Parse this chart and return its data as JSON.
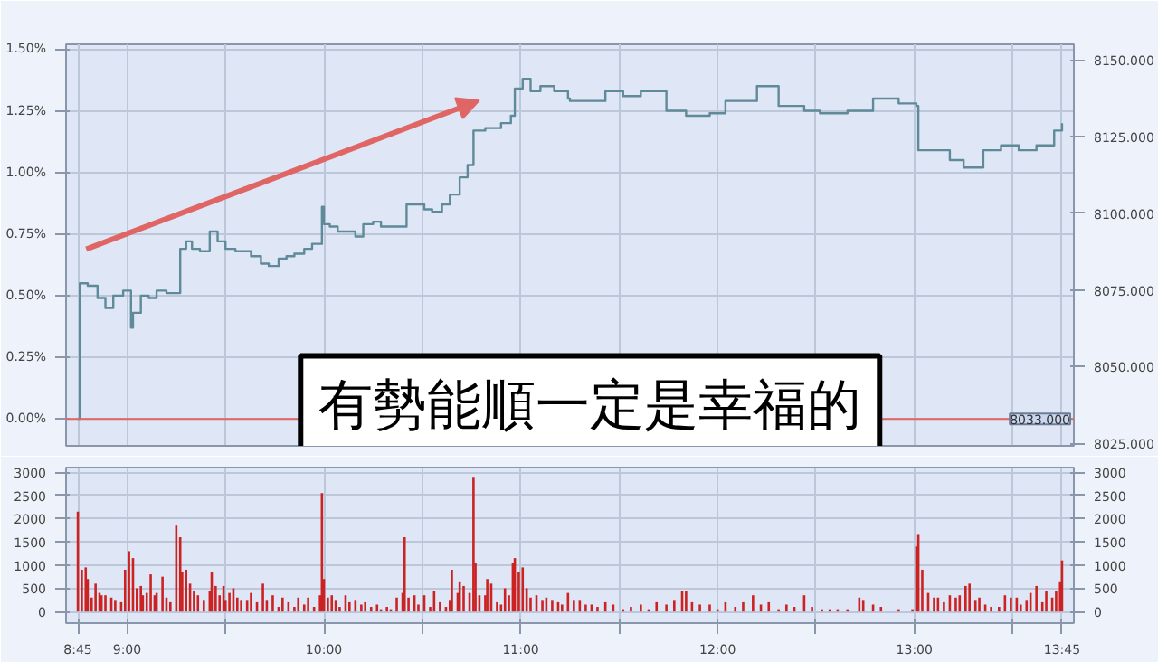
{
  "chart_data": [
    {
      "type": "step",
      "annotations": [
        "有勢能順一定是幸福的"
      ],
      "grid": true,
      "tick_labels": "y",
      "xlim": [
        8.69,
        13.81
      ],
      "xticks": [
        {
          "value": 8.75,
          "label": null
        },
        {
          "value": 9,
          "label": null
        },
        {
          "value": 9.5,
          "label": null
        },
        {
          "value": 10,
          "label": null
        },
        {
          "value": 10.5,
          "label": null
        },
        {
          "value": 11,
          "label": null
        },
        {
          "value": 11.5,
          "label": null
        },
        {
          "value": 12,
          "label": null
        },
        {
          "value": 12.5,
          "label": null
        },
        {
          "value": 13,
          "label": null
        },
        {
          "value": 13.5,
          "label": null
        },
        {
          "value": 13.75,
          "label": null
        }
      ],
      "ylim": [
        -0.11,
        1.52
      ],
      "yticks": [
        {
          "value": 0,
          "label": "0.00%"
        },
        {
          "value": 0.25,
          "label": "0.25%"
        },
        {
          "value": 0.5,
          "label": "0.50%"
        },
        {
          "value": 0.75,
          "label": "0.75%"
        },
        {
          "value": 1.0,
          "label": "1.00%"
        },
        {
          "value": 1.25,
          "label": "1.25%"
        },
        {
          "value": 1.5,
          "label": "1.50%"
        }
      ],
      "y2lim": [
        8024.2,
        8155.1
      ],
      "y2ticks": [
        {
          "value": 8025,
          "label": "8025.000"
        },
        {
          "value": 8050,
          "label": "8050.000"
        },
        {
          "value": 8075,
          "label": "8075.000"
        },
        {
          "value": 8100,
          "label": "8100.000"
        },
        {
          "value": 8125,
          "label": "8125.000"
        },
        {
          "value": 8150,
          "label": "8150.000"
        }
      ],
      "ref_lines": [
        {
          "axis": "y2",
          "value": 8033,
          "label": "8033.000",
          "color": "#e06666"
        }
      ],
      "series": [
        {
          "color": "#5f8a99",
          "x": [
            8.75,
            8.76,
            8.8,
            8.85,
            8.89,
            8.93,
            8.98,
            9.02,
            9.03,
            9.07,
            9.11,
            9.15,
            9.2,
            9.24,
            9.27,
            9.3,
            9.33,
            9.37,
            9.42,
            9.46,
            9.5,
            9.55,
            9.59,
            9.63,
            9.68,
            9.72,
            9.77,
            9.81,
            9.85,
            9.9,
            9.94,
            9.99,
            10.0,
            10.03,
            10.07,
            10.12,
            10.16,
            10.2,
            10.25,
            10.29,
            10.34,
            10.38,
            10.42,
            10.47,
            10.51,
            10.55,
            10.6,
            10.64,
            10.69,
            10.73,
            10.76,
            10.82,
            10.86,
            10.9,
            10.95,
            10.97,
            11.01,
            11.05,
            11.1,
            11.17,
            11.24,
            11.25,
            11.34,
            11.43,
            11.52,
            11.61,
            11.74,
            11.84,
            11.96,
            12.04,
            12.2,
            12.31,
            12.44,
            12.52,
            12.66,
            12.79,
            12.92,
            13.01,
            13.02,
            13.09,
            13.18,
            13.25,
            13.35,
            13.44,
            13.53,
            13.62,
            13.71,
            13.75
          ],
          "values": [
            0.0,
            0.55,
            0.54,
            0.49,
            0.45,
            0.5,
            0.52,
            0.37,
            0.43,
            0.5,
            0.49,
            0.52,
            0.51,
            0.51,
            0.69,
            0.72,
            0.69,
            0.68,
            0.76,
            0.72,
            0.69,
            0.68,
            0.68,
            0.66,
            0.63,
            0.62,
            0.65,
            0.66,
            0.67,
            0.69,
            0.71,
            0.86,
            0.79,
            0.78,
            0.76,
            0.76,
            0.74,
            0.79,
            0.8,
            0.78,
            0.78,
            0.78,
            0.87,
            0.87,
            0.85,
            0.84,
            0.87,
            0.91,
            0.98,
            1.03,
            1.17,
            1.18,
            1.18,
            1.2,
            1.23,
            1.34,
            1.38,
            1.33,
            1.35,
            1.33,
            1.3,
            1.29,
            1.29,
            1.33,
            1.31,
            1.33,
            1.25,
            1.23,
            1.24,
            1.29,
            1.35,
            1.27,
            1.25,
            1.24,
            1.25,
            1.3,
            1.28,
            1.27,
            1.09,
            1.09,
            1.05,
            1.02,
            1.09,
            1.11,
            1.09,
            1.11,
            1.17,
            1.2
          ]
        }
      ]
    },
    {
      "type": "bar",
      "grid": true,
      "color": "#cc2222",
      "xlim": [
        8.69,
        13.81
      ],
      "xticks": [
        {
          "value": 8.75,
          "label": "8:45"
        },
        {
          "value": 9,
          "label": "9:00"
        },
        {
          "value": 9.5,
          "label": null
        },
        {
          "value": 10,
          "label": "10:00"
        },
        {
          "value": 10.5,
          "label": null
        },
        {
          "value": 11,
          "label": "11:00"
        },
        {
          "value": 11.5,
          "label": null
        },
        {
          "value": 12,
          "label": "12:00"
        },
        {
          "value": 12.5,
          "label": null
        },
        {
          "value": 13,
          "label": "13:00"
        },
        {
          "value": 13.5,
          "label": null
        },
        {
          "value": 13.75,
          "label": "13:45"
        }
      ],
      "ylim": [
        -250,
        3100
      ],
      "yticks": [
        0,
        500,
        1000,
        1500,
        2000,
        2500,
        3000
      ],
      "y2lim": [
        -250,
        3100
      ],
      "y2ticks": [
        0,
        500,
        1000,
        1500,
        2000,
        2500,
        3000
      ],
      "x": [
        8.75,
        8.77,
        8.79,
        8.8,
        8.82,
        8.84,
        8.86,
        8.87,
        8.89,
        8.92,
        8.94,
        8.97,
        8.99,
        9.01,
        9.03,
        9.05,
        9.07,
        9.08,
        9.1,
        9.12,
        9.14,
        9.15,
        9.18,
        9.2,
        9.22,
        9.25,
        9.27,
        9.28,
        9.3,
        9.32,
        9.34,
        9.36,
        9.39,
        9.42,
        9.43,
        9.45,
        9.47,
        9.49,
        9.5,
        9.52,
        9.54,
        9.56,
        9.58,
        9.61,
        9.63,
        9.66,
        9.69,
        9.71,
        9.74,
        9.77,
        9.79,
        9.82,
        9.85,
        9.87,
        9.9,
        9.92,
        9.95,
        9.98,
        9.99,
        10.0,
        10.02,
        10.04,
        10.06,
        10.08,
        10.11,
        10.13,
        10.16,
        10.19,
        10.21,
        10.24,
        10.27,
        10.29,
        10.32,
        10.34,
        10.37,
        10.4,
        10.41,
        10.43,
        10.46,
        10.48,
        10.51,
        10.54,
        10.56,
        10.59,
        10.62,
        10.64,
        10.65,
        10.68,
        10.69,
        10.71,
        10.74,
        10.76,
        10.77,
        10.79,
        10.82,
        10.83,
        10.85,
        10.88,
        10.9,
        10.92,
        10.94,
        10.96,
        10.97,
        10.99,
        11.01,
        11.03,
        11.05,
        11.08,
        11.11,
        11.13,
        11.16,
        11.19,
        11.21,
        11.24,
        11.27,
        11.3,
        11.33,
        11.36,
        11.39,
        11.43,
        11.47,
        11.52,
        11.56,
        11.61,
        11.65,
        11.69,
        11.74,
        11.78,
        11.82,
        11.84,
        11.87,
        11.91,
        11.96,
        12.0,
        12.04,
        12.09,
        12.13,
        12.18,
        12.22,
        12.26,
        12.31,
        12.35,
        12.39,
        12.44,
        12.48,
        12.53,
        12.57,
        12.61,
        12.66,
        12.72,
        12.74,
        12.79,
        12.83,
        12.92,
        12.99,
        13.01,
        13.02,
        13.04,
        13.07,
        13.1,
        13.12,
        13.15,
        13.18,
        13.21,
        13.23,
        13.26,
        13.28,
        13.31,
        13.33,
        13.36,
        13.39,
        13.43,
        13.46,
        13.49,
        13.52,
        13.54,
        13.57,
        13.59,
        13.62,
        13.65,
        13.67,
        13.7,
        13.72,
        13.74,
        13.75
      ],
      "values": [
        2150,
        900,
        950,
        700,
        300,
        600,
        400,
        350,
        350,
        300,
        250,
        200,
        900,
        1300,
        1150,
        500,
        550,
        350,
        400,
        800,
        350,
        400,
        750,
        300,
        200,
        1850,
        1600,
        850,
        900,
        600,
        450,
        350,
        250,
        450,
        850,
        550,
        350,
        550,
        250,
        400,
        500,
        300,
        250,
        250,
        400,
        200,
        600,
        250,
        350,
        100,
        300,
        200,
        100,
        300,
        150,
        300,
        100,
        350,
        2550,
        700,
        300,
        350,
        250,
        100,
        350,
        200,
        250,
        150,
        200,
        100,
        150,
        50,
        100,
        50,
        300,
        400,
        1600,
        300,
        350,
        150,
        350,
        100,
        450,
        200,
        100,
        250,
        900,
        400,
        650,
        550,
        400,
        2900,
        1050,
        350,
        350,
        700,
        600,
        200,
        150,
        500,
        350,
        1050,
        1150,
        850,
        950,
        500,
        300,
        350,
        250,
        300,
        250,
        200,
        150,
        400,
        250,
        250,
        150,
        150,
        100,
        200,
        150,
        50,
        100,
        150,
        50,
        200,
        150,
        250,
        450,
        450,
        200,
        150,
        150,
        50,
        200,
        100,
        200,
        350,
        150,
        200,
        50,
        150,
        100,
        350,
        100,
        50,
        50,
        50,
        50,
        300,
        250,
        150,
        100,
        50,
        50,
        1400,
        1650,
        900,
        400,
        300,
        300,
        200,
        350,
        300,
        350,
        550,
        600,
        250,
        300,
        150,
        100,
        100,
        350,
        300,
        300,
        150,
        250,
        400,
        550,
        200,
        450,
        300,
        450,
        650,
        1100
      ]
    }
  ]
}
